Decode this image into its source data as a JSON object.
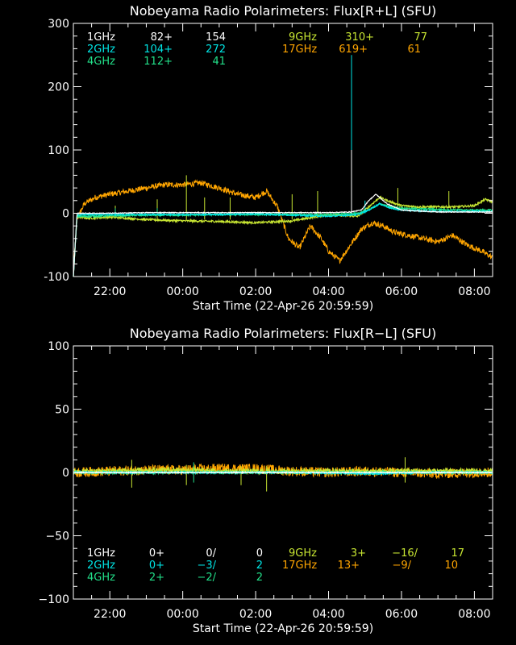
{
  "colors": {
    "1GHz": "#ffffff",
    "2GHz": "#00e5e5",
    "4GHz": "#22e08a",
    "9GHz": "#c8e632",
    "17GHz": "#ffa500",
    "axis": "#ffffff",
    "background": "#000000"
  },
  "chart_data": [
    {
      "type": "line",
      "title": "Nobeyama Radio Polarimeters: Flux[R+L] (SFU)",
      "xlabel": "Start Time (22-Apr-26 20:59:59)",
      "ylabel": "",
      "x_unit": "hours since start time",
      "xlim": [
        0,
        11.5
      ],
      "ylim": [
        -100,
        300
      ],
      "xticks": [
        1,
        3,
        5,
        7,
        9,
        11
      ],
      "xtick_labels": [
        "22:00",
        "00:00",
        "02:00",
        "04:00",
        "06:00",
        "08:00"
      ],
      "yticks": [
        -100,
        0,
        100,
        200,
        300
      ],
      "ytick_labels": [
        "-100",
        "0",
        "100",
        "200",
        "300"
      ],
      "grid": false,
      "legend_placement": "top",
      "legend": [
        {
          "name": "1GHz",
          "base": "82+",
          "value": "154"
        },
        {
          "name": "2GHz",
          "base": "104+",
          "value": "272"
        },
        {
          "name": "4GHz",
          "base": "112+",
          "value": "41"
        },
        {
          "name": "9GHz",
          "base": "310+",
          "value": "77"
        },
        {
          "name": "17GHz",
          "base": "619+",
          "value": "61"
        }
      ],
      "series": [
        {
          "name": "17GHz",
          "x": [
            0.0,
            0.1,
            0.3,
            0.6,
            1.0,
            1.5,
            2.0,
            2.5,
            3.0,
            3.5,
            4.0,
            4.5,
            5.0,
            5.3,
            5.6,
            5.9,
            6.2,
            6.5,
            6.8,
            7.0,
            7.3,
            7.6,
            7.9,
            8.2,
            8.5,
            8.8,
            9.2,
            9.6,
            10.0,
            10.4,
            10.8,
            11.2,
            11.5
          ],
          "y": [
            -90,
            -10,
            15,
            25,
            30,
            35,
            40,
            45,
            45,
            48,
            40,
            30,
            25,
            35,
            10,
            -40,
            -55,
            -20,
            -40,
            -60,
            -75,
            -50,
            -25,
            -15,
            -20,
            -30,
            -35,
            -40,
            -45,
            -35,
            -50,
            -60,
            -70
          ]
        },
        {
          "name": "9GHz",
          "x": [
            0.0,
            0.1,
            0.4,
            1.0,
            2.0,
            3.0,
            4.0,
            5.0,
            6.0,
            7.0,
            7.8,
            8.1,
            8.4,
            8.7,
            9.0,
            9.5,
            10.0,
            10.5,
            11.0,
            11.3,
            11.5
          ],
          "y": [
            -100,
            -5,
            -8,
            -6,
            -10,
            -12,
            -13,
            -15,
            -12,
            -2,
            -5,
            10,
            25,
            18,
            12,
            10,
            10,
            10,
            12,
            22,
            18
          ]
        },
        {
          "name": "4GHz",
          "x": [
            0.0,
            0.1,
            0.4,
            1.0,
            2.0,
            3.0,
            4.0,
            5.0,
            6.0,
            7.0,
            7.8,
            8.1,
            8.4,
            8.7,
            9.0,
            10.0,
            11.0,
            11.5
          ],
          "y": [
            -100,
            -5,
            -5,
            -4,
            -3,
            -3,
            -2,
            -2,
            -2,
            -2,
            0,
            5,
            15,
            10,
            8,
            6,
            5,
            5
          ]
        },
        {
          "name": "2GHz",
          "x": [
            0.0,
            0.1,
            0.4,
            1.0,
            2.0,
            3.0,
            4.0,
            5.0,
            6.0,
            7.0,
            7.8,
            8.1,
            8.4,
            8.7,
            9.0,
            10.0,
            11.0,
            11.5
          ],
          "y": [
            -100,
            -3,
            -2,
            -2,
            -2,
            -2,
            -2,
            -1,
            -3,
            -5,
            -2,
            5,
            15,
            8,
            5,
            3,
            3,
            3
          ]
        },
        {
          "name": "1GHz",
          "x": [
            0.0,
            0.1,
            0.4,
            1.0,
            2.0,
            3.0,
            4.0,
            5.0,
            6.0,
            7.0,
            7.6,
            7.9,
            8.1,
            8.3,
            8.6,
            9.0,
            10.0,
            11.0,
            11.5
          ],
          "y": [
            -100,
            0,
            0,
            0,
            1,
            1,
            1,
            1,
            1,
            1,
            2,
            5,
            20,
            30,
            15,
            5,
            2,
            2,
            2
          ]
        }
      ]
    },
    {
      "type": "line",
      "title": "Nobeyama Radio Polarimeters: Flux[R−L] (SFU)",
      "xlabel": "Start Time (22-Apr-26 20:59:59)",
      "ylabel": "",
      "x_unit": "hours since start time",
      "xlim": [
        0,
        11.5
      ],
      "ylim": [
        -100,
        100
      ],
      "xticks": [
        1,
        3,
        5,
        7,
        9,
        11
      ],
      "xtick_labels": [
        "22:00",
        "00:00",
        "02:00",
        "04:00",
        "06:00",
        "08:00"
      ],
      "yticks": [
        -100,
        -50,
        0,
        50,
        100
      ],
      "ytick_labels": [
        "−100",
        "−50",
        "0",
        "50",
        "100"
      ],
      "grid": false,
      "legend_placement": "bottom",
      "legend": [
        {
          "name": "1GHz",
          "base": "0+",
          "mid": "0/",
          "value": "0"
        },
        {
          "name": "2GHz",
          "base": "0+",
          "mid": "−3/",
          "value": "2"
        },
        {
          "name": "4GHz",
          "base": "2+",
          "mid": "−2/",
          "value": "2"
        },
        {
          "name": "9GHz",
          "base": "3+",
          "mid": "−16/",
          "value": "17"
        },
        {
          "name": "17GHz",
          "base": "13+",
          "mid": "−9/",
          "value": "10"
        }
      ],
      "series": [
        {
          "name": "17GHz",
          "x": [
            0.0,
            1.0,
            2.0,
            3.0,
            4.0,
            5.0,
            6.0,
            7.0,
            8.0,
            9.0,
            10.0,
            11.0,
            11.5
          ],
          "y": [
            0,
            1,
            2,
            2,
            3,
            3,
            1,
            0,
            1,
            0,
            -1,
            0,
            0
          ]
        },
        {
          "name": "9GHz",
          "x": [
            0.0,
            1.0,
            2.0,
            3.0,
            4.0,
            5.0,
            6.0,
            7.0,
            8.0,
            9.0,
            10.0,
            11.0,
            11.5
          ],
          "y": [
            1,
            1,
            2,
            2,
            1,
            1,
            1,
            1,
            1,
            1,
            1,
            1,
            1
          ]
        },
        {
          "name": "4GHz",
          "x": [
            0.0,
            2.0,
            4.0,
            6.0,
            8.0,
            10.0,
            11.5
          ],
          "y": [
            0,
            0,
            0,
            0,
            0,
            0,
            0
          ]
        },
        {
          "name": "2GHz",
          "x": [
            0.0,
            2.0,
            4.0,
            6.0,
            8.0,
            10.0,
            11.5
          ],
          "y": [
            0,
            0,
            0,
            0,
            -1,
            0,
            0
          ]
        },
        {
          "name": "1GHz",
          "x": [
            0.0,
            2.0,
            4.0,
            6.0,
            8.0,
            10.0,
            11.5
          ],
          "y": [
            0,
            0,
            0,
            0,
            0,
            0,
            0
          ]
        }
      ]
    }
  ]
}
